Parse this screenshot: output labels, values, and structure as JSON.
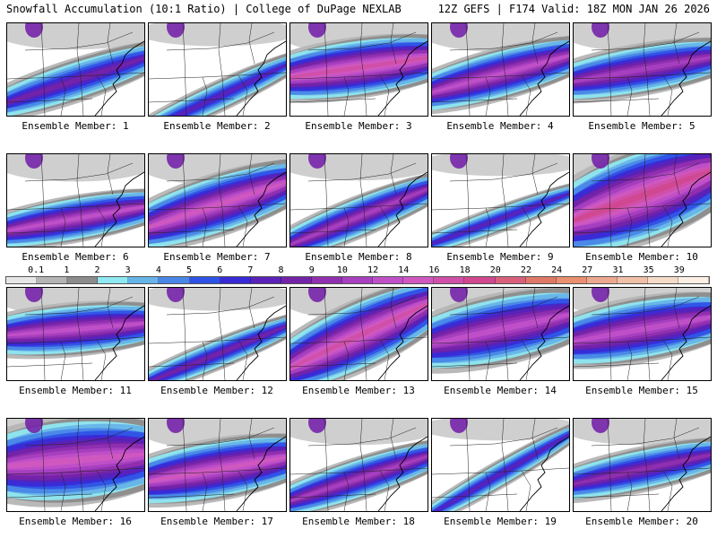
{
  "header": {
    "left_title": "Snowfall Accumulation (10:1 Ratio) | College of DuPage NEXLAB",
    "right_title": "12Z GEFS | F174 Valid: 18Z MON JAN 26 2026"
  },
  "legend": {
    "labels": [
      "0.1",
      "1",
      "2",
      "3",
      "4",
      "5",
      "6",
      "7",
      "8",
      "9",
      "10",
      "12",
      "14",
      "16",
      "18",
      "20",
      "22",
      "24",
      "27",
      "31",
      "35",
      "39"
    ],
    "colors": [
      "#e6e6e6",
      "#b5b5b5",
      "#8c8c8c",
      "#8fe8f2",
      "#67b4e8",
      "#4a86e8",
      "#2f52e6",
      "#3a2ad6",
      "#5a22b8",
      "#7424a8",
      "#9030b0",
      "#a840c0",
      "#c050c8",
      "#d058c0",
      "#d050a8",
      "#d04890",
      "#d8607c",
      "#e07868",
      "#e89070",
      "#eca890",
      "#f0c0a8",
      "#f6dcc8",
      "#fcefe4"
    ]
  },
  "panels": [
    {
      "label": "Ensemble Member: 1",
      "coverage": 0.45,
      "intensity": 0.45,
      "band_y": 0.62,
      "angle": -18,
      "width": 0.22
    },
    {
      "label": "Ensemble Member: 2",
      "coverage": 0.3,
      "intensity": 0.35,
      "band_y": 0.8,
      "angle": -25,
      "width": 0.15
    },
    {
      "label": "Ensemble Member: 3",
      "coverage": 0.65,
      "intensity": 0.8,
      "band_y": 0.48,
      "angle": -8,
      "width": 0.28
    },
    {
      "label": "Ensemble Member: 4",
      "coverage": 0.55,
      "intensity": 0.65,
      "band_y": 0.55,
      "angle": -15,
      "width": 0.25
    },
    {
      "label": "Ensemble Member: 5",
      "coverage": 0.55,
      "intensity": 0.55,
      "band_y": 0.5,
      "angle": -10,
      "width": 0.25
    },
    {
      "label": "Ensemble Member: 6",
      "coverage": 0.5,
      "intensity": 0.7,
      "band_y": 0.7,
      "angle": -10,
      "width": 0.22
    },
    {
      "label": "Ensemble Member: 7",
      "coverage": 0.65,
      "intensity": 0.75,
      "band_y": 0.55,
      "angle": -18,
      "width": 0.3
    },
    {
      "label": "Ensemble Member: 8",
      "coverage": 0.45,
      "intensity": 0.55,
      "band_y": 0.68,
      "angle": -22,
      "width": 0.18
    },
    {
      "label": "Ensemble Member: 9",
      "coverage": 0.25,
      "intensity": 0.35,
      "band_y": 0.7,
      "angle": -20,
      "width": 0.12
    },
    {
      "label": "Ensemble Member: 10",
      "coverage": 0.9,
      "intensity": 0.9,
      "band_y": 0.45,
      "angle": -20,
      "width": 0.45
    },
    {
      "label": "Ensemble Member: 11",
      "coverage": 0.55,
      "intensity": 0.7,
      "band_y": 0.45,
      "angle": -5,
      "width": 0.28
    },
    {
      "label": "Ensemble Member: 12",
      "coverage": 0.3,
      "intensity": 0.4,
      "band_y": 0.72,
      "angle": -22,
      "width": 0.15
    },
    {
      "label": "Ensemble Member: 13",
      "coverage": 0.7,
      "intensity": 0.8,
      "band_y": 0.52,
      "angle": -25,
      "width": 0.35
    },
    {
      "label": "Ensemble Member: 14",
      "coverage": 0.7,
      "intensity": 0.65,
      "band_y": 0.45,
      "angle": -12,
      "width": 0.38
    },
    {
      "label": "Ensemble Member: 15",
      "coverage": 0.65,
      "intensity": 0.7,
      "band_y": 0.45,
      "angle": -10,
      "width": 0.35
    },
    {
      "label": "Ensemble Member: 16",
      "coverage": 0.85,
      "intensity": 0.75,
      "band_y": 0.45,
      "angle": -5,
      "width": 0.45
    },
    {
      "label": "Ensemble Member: 17",
      "coverage": 0.65,
      "intensity": 0.75,
      "band_y": 0.55,
      "angle": -10,
      "width": 0.3
    },
    {
      "label": "Ensemble Member: 18",
      "coverage": 0.45,
      "intensity": 0.55,
      "band_y": 0.65,
      "angle": -18,
      "width": 0.2
    },
    {
      "label": "Ensemble Member: 19",
      "coverage": 0.25,
      "intensity": 0.35,
      "band_y": 0.6,
      "angle": -30,
      "width": 0.12
    },
    {
      "label": "Ensemble Member: 20",
      "coverage": 0.45,
      "intensity": 0.5,
      "band_y": 0.55,
      "angle": -12,
      "width": 0.25
    }
  ]
}
